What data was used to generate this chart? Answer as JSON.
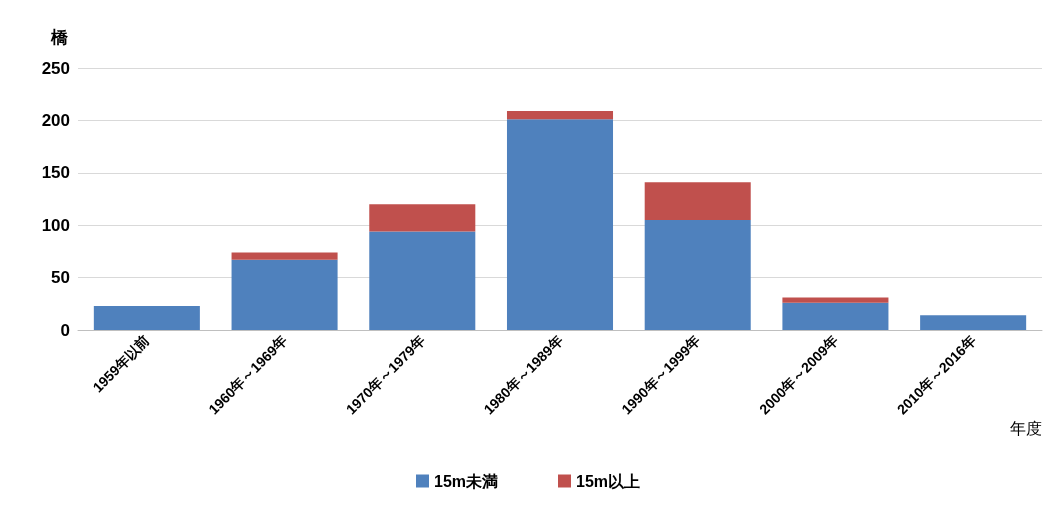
{
  "chart_data": {
    "type": "bar",
    "ylabel": "橋",
    "xlabel": "年度",
    "stacked": true,
    "categories": [
      "1959年以前",
      "1960年～1969年",
      "1970年～1979年",
      "1980年～1989年",
      "1990年～1999年",
      "2000年～2009年",
      "2010年～2016年"
    ],
    "series": [
      {
        "name": "15m未満",
        "color": "#4f81bd",
        "values": [
          23,
          67,
          94,
          201,
          105,
          26,
          14
        ]
      },
      {
        "name": "15m以上",
        "color": "#c0504d",
        "values": [
          0,
          7,
          26,
          8,
          36,
          5,
          0
        ]
      }
    ],
    "ylim": [
      0,
      250
    ],
    "yticks": [
      0,
      50,
      100,
      150,
      200,
      250
    ],
    "grid": "y",
    "legend": "bottom"
  }
}
